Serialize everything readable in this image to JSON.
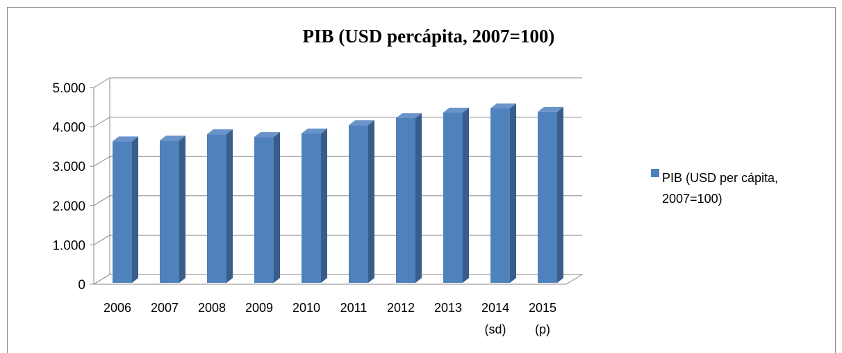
{
  "chart_data": {
    "type": "bar",
    "title": "PIB (USD percápita, 2007=100)",
    "categories": [
      "2006",
      "2007",
      "2008",
      "2009",
      "2010",
      "2011",
      "2012",
      "2013",
      "2014 (sd)",
      "2015 (p)"
    ],
    "series": [
      {
        "name": "PIB (USD per cápita, 2007=100)",
        "color": "#4f81bd",
        "values": [
          3580,
          3600,
          3760,
          3690,
          3780,
          3990,
          4170,
          4310,
          4420,
          4330
        ]
      }
    ],
    "ylim": [
      0,
      5000
    ],
    "yticks": [
      0,
      {
        "value": 1000,
        "label": "1.000"
      },
      {
        "value": 2000,
        "label": "2.000"
      },
      {
        "value": 3000,
        "label": "3.000"
      },
      {
        "value": 4000,
        "label": "4.000"
      },
      {
        "value": 5000,
        "label": "5.000"
      }
    ],
    "grid": true,
    "legend": "right"
  }
}
